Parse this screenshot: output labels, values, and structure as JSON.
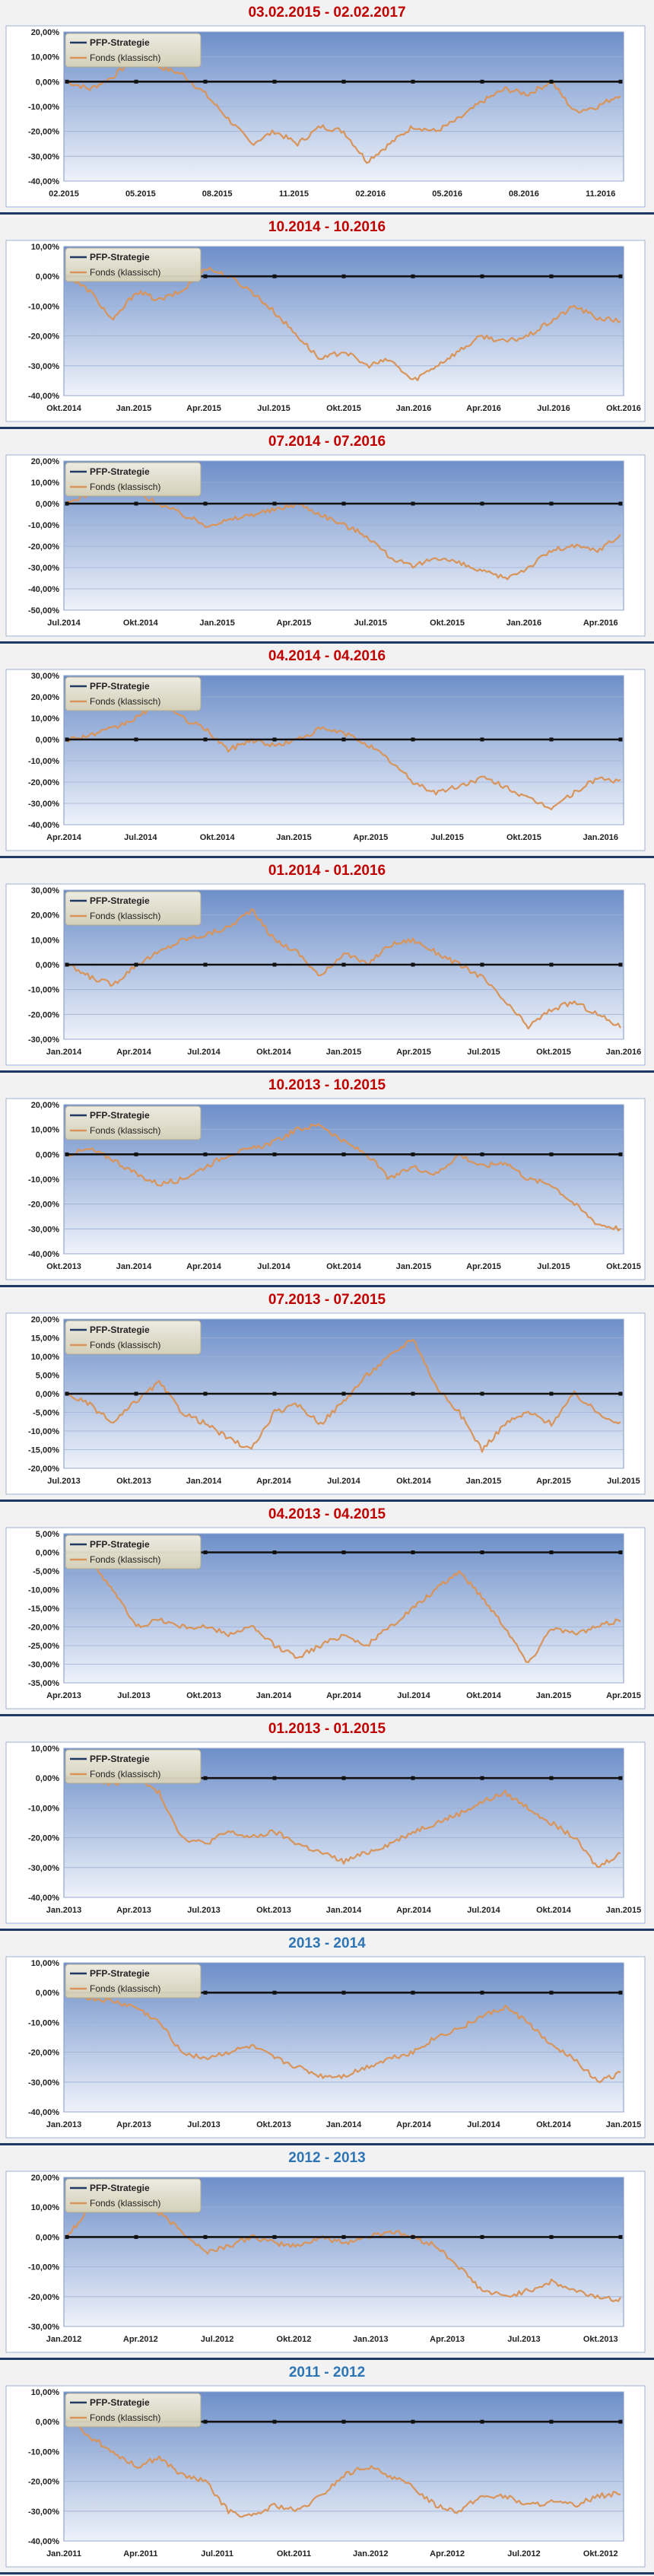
{
  "legend": {
    "strategy": "PFP-Strategie",
    "fund": "Fonds (klassisch)"
  },
  "colors": {
    "strategy": "#1f3864",
    "fund": "#d9945a",
    "red_title": "#c00000",
    "blue_title": "#2e75b6"
  },
  "chart_data": [
    {
      "type": "line",
      "title": "03.02.2015 - 02.02.2017",
      "title_color": "red",
      "yticks": [
        "20,00%",
        "10,00%",
        "0,00%",
        "-10,00%",
        "-20,00%",
        "-30,00%",
        "-40,00%"
      ],
      "ylim": [
        -40,
        20
      ],
      "xticks": [
        "02.2015",
        "05.2015",
        "08.2015",
        "11.2015",
        "02.2016",
        "05.2016",
        "08.2016",
        "11.2016"
      ],
      "series": [
        {
          "name": "PFP-Strategie",
          "values": [
            0,
            0,
            0,
            0,
            0,
            0,
            0,
            0,
            0,
            0,
            0,
            0,
            0,
            0,
            0,
            0,
            0,
            0,
            0,
            0,
            0,
            0,
            0,
            0,
            0
          ]
        },
        {
          "name": "Fonds (klassisch)",
          "values": [
            0,
            -3,
            2,
            10,
            6,
            3,
            -5,
            -15,
            -25,
            -20,
            -25,
            -18,
            -20,
            -32,
            -25,
            -18,
            -20,
            -15,
            -8,
            -3,
            -5,
            0,
            -12,
            -10,
            -5
          ]
        }
      ]
    },
    {
      "type": "line",
      "title": "10.2014 - 10.2016",
      "title_color": "red",
      "yticks": [
        "10,00%",
        "0,00%",
        "-10,00%",
        "-20,00%",
        "-30,00%",
        "-40,00%"
      ],
      "ylim": [
        -40,
        10
      ],
      "xticks": [
        "Okt.2014",
        "Jan.2015",
        "Apr.2015",
        "Jul.2015",
        "Okt.2015",
        "Jan.2016",
        "Apr.2016",
        "Jul.2016",
        "Okt.2016"
      ],
      "series": [
        {
          "name": "PFP-Strategie",
          "values": [
            0,
            0,
            0,
            0,
            0,
            0,
            0,
            0,
            0,
            0,
            0,
            0,
            0,
            0,
            0,
            0,
            0,
            0,
            0,
            0,
            0,
            0,
            0,
            0,
            0
          ]
        },
        {
          "name": "Fonds (klassisch)",
          "values": [
            0,
            -5,
            -15,
            -5,
            -8,
            -5,
            3,
            0,
            -5,
            -12,
            -20,
            -28,
            -25,
            -30,
            -28,
            -35,
            -30,
            -25,
            -20,
            -22,
            -20,
            -15,
            -10,
            -14,
            -15
          ]
        }
      ]
    },
    {
      "type": "line",
      "title": "07.2014 - 07.2016",
      "title_color": "red",
      "yticks": [
        "20,00%",
        "10,00%",
        "0,00%",
        "-10,00%",
        "-20,00%",
        "-30,00%",
        "-40,00%",
        "-50,00%"
      ],
      "ylim": [
        -50,
        20
      ],
      "xticks": [
        "Jul.2014",
        "Okt.2014",
        "Jan.2015",
        "Apr.2015",
        "Jul.2015",
        "Okt.2015",
        "Jan.2016",
        "Apr.2016"
      ],
      "series": [
        {
          "name": "PFP-Strategie",
          "values": [
            0,
            0,
            0,
            0,
            0,
            0,
            0,
            0,
            0,
            0,
            0,
            0,
            0,
            0,
            0,
            0,
            0,
            0,
            0,
            0,
            0,
            0,
            0,
            0,
            0
          ]
        },
        {
          "name": "Fonds (klassisch)",
          "values": [
            0,
            5,
            12,
            5,
            0,
            -5,
            -10,
            -8,
            -5,
            -3,
            0,
            -5,
            -10,
            -15,
            -25,
            -30,
            -25,
            -28,
            -32,
            -35,
            -30,
            -22,
            -20,
            -22,
            -15
          ]
        }
      ]
    },
    {
      "type": "line",
      "title": "04.2014 - 04.2016",
      "title_color": "red",
      "yticks": [
        "30,00%",
        "20,00%",
        "10,00%",
        "0,00%",
        "-10,00%",
        "-20,00%",
        "-30,00%",
        "-40,00%"
      ],
      "ylim": [
        -40,
        30
      ],
      "xticks": [
        "Apr.2014",
        "Jul.2014",
        "Okt.2014",
        "Jan.2015",
        "Apr.2015",
        "Jul.2015",
        "Okt.2015",
        "Jan.2016"
      ],
      "series": [
        {
          "name": "PFP-Strategie",
          "values": [
            0,
            0,
            0,
            0,
            0,
            0,
            0,
            0,
            0,
            0,
            0,
            0,
            0,
            0,
            0,
            0,
            0,
            0,
            0,
            0,
            0,
            0,
            0,
            0,
            0
          ]
        },
        {
          "name": "Fonds (klassisch)",
          "values": [
            0,
            2,
            5,
            10,
            18,
            10,
            5,
            -5,
            0,
            -3,
            0,
            5,
            3,
            -2,
            -10,
            -20,
            -25,
            -22,
            -18,
            -22,
            -28,
            -32,
            -25,
            -18,
            -20
          ]
        }
      ]
    },
    {
      "type": "line",
      "title": "01.2014 - 01.2016",
      "title_color": "red",
      "yticks": [
        "30,00%",
        "20,00%",
        "10,00%",
        "0,00%",
        "-10,00%",
        "-20,00%",
        "-30,00%"
      ],
      "ylim": [
        -30,
        30
      ],
      "xticks": [
        "Jan.2014",
        "Apr.2014",
        "Jul.2014",
        "Okt.2014",
        "Jan.2015",
        "Apr.2015",
        "Jul.2015",
        "Okt.2015",
        "Jan.2016"
      ],
      "series": [
        {
          "name": "PFP-Strategie",
          "values": [
            0,
            0,
            0,
            0,
            0,
            0,
            0,
            0,
            0,
            0,
            0,
            0,
            0,
            0,
            0,
            0,
            0,
            0,
            0,
            0,
            0,
            0,
            0,
            0,
            0
          ]
        },
        {
          "name": "Fonds (klassisch)",
          "values": [
            0,
            -5,
            -8,
            0,
            5,
            10,
            12,
            15,
            22,
            10,
            5,
            -5,
            5,
            0,
            8,
            10,
            5,
            0,
            -5,
            -15,
            -25,
            -18,
            -15,
            -20,
            -25
          ]
        }
      ]
    },
    {
      "type": "line",
      "title": "10.2013 - 10.2015",
      "title_color": "red",
      "yticks": [
        "20,00%",
        "10,00%",
        "0,00%",
        "-10,00%",
        "-20,00%",
        "-30,00%",
        "-40,00%"
      ],
      "ylim": [
        -40,
        20
      ],
      "xticks": [
        "Okt.2013",
        "Jan.2014",
        "Apr.2014",
        "Jul.2014",
        "Okt.2014",
        "Jan.2015",
        "Apr.2015",
        "Jul.2015",
        "Okt.2015"
      ],
      "series": [
        {
          "name": "PFP-Strategie",
          "values": [
            0,
            0,
            0,
            0,
            0,
            0,
            0,
            0,
            0,
            0,
            0,
            0,
            0,
            0,
            0,
            0,
            0,
            0,
            0,
            0,
            0,
            0,
            0,
            0,
            0
          ]
        },
        {
          "name": "Fonds (klassisch)",
          "values": [
            0,
            2,
            -2,
            -8,
            -12,
            -10,
            -5,
            0,
            2,
            5,
            10,
            12,
            5,
            0,
            -10,
            -5,
            -8,
            0,
            -5,
            -3,
            -10,
            -12,
            -20,
            -28,
            -30
          ]
        }
      ]
    },
    {
      "type": "line",
      "title": "07.2013 - 07.2015",
      "title_color": "red",
      "yticks": [
        "20,00%",
        "15,00%",
        "10,00%",
        "5,00%",
        "0,00%",
        "-5,00%",
        "-10,00%",
        "-15,00%",
        "-20,00%"
      ],
      "ylim": [
        -20,
        20
      ],
      "xticks": [
        "Jul.2013",
        "Okt.2013",
        "Jan.2014",
        "Apr.2014",
        "Jul.2014",
        "Okt.2014",
        "Jan.2015",
        "Apr.2015",
        "Jul.2015"
      ],
      "series": [
        {
          "name": "PFP-Strategie",
          "values": [
            0,
            0,
            0,
            0,
            0,
            0,
            0,
            0,
            0,
            0,
            0,
            0,
            0,
            0,
            0,
            0,
            0,
            0,
            0,
            0,
            0,
            0,
            0,
            0,
            0
          ]
        },
        {
          "name": "Fonds (klassisch)",
          "values": [
            0,
            -3,
            -8,
            -2,
            3,
            -5,
            -8,
            -12,
            -15,
            -5,
            -3,
            -8,
            -2,
            5,
            10,
            15,
            2,
            -5,
            -15,
            -8,
            -5,
            -8,
            0,
            -5,
            -8
          ]
        }
      ]
    },
    {
      "type": "line",
      "title": "04.2013 - 04.2015",
      "title_color": "red",
      "yticks": [
        "5,00%",
        "0,00%",
        "-5,00%",
        "-10,00%",
        "-15,00%",
        "-20,00%",
        "-25,00%",
        "-30,00%",
        "-35,00%"
      ],
      "ylim": [
        -35,
        5
      ],
      "xticks": [
        "Apr.2013",
        "Jul.2013",
        "Okt.2013",
        "Jan.2014",
        "Apr.2014",
        "Jul.2014",
        "Okt.2014",
        "Jan.2015",
        "Apr.2015"
      ],
      "series": [
        {
          "name": "PFP-Strategie",
          "values": [
            0,
            0,
            0,
            0,
            0,
            0,
            0,
            0,
            0,
            0,
            0,
            0,
            0,
            0,
            0,
            0,
            0,
            0,
            0,
            0,
            0,
            0,
            0,
            0,
            0
          ]
        },
        {
          "name": "Fonds (klassisch)",
          "values": [
            0,
            -2,
            -10,
            -20,
            -18,
            -20,
            -20,
            -22,
            -20,
            -25,
            -28,
            -25,
            -22,
            -25,
            -20,
            -15,
            -10,
            -5,
            -12,
            -20,
            -30,
            -20,
            -22,
            -20,
            -18
          ]
        }
      ]
    },
    {
      "type": "line",
      "title": "01.2013 - 01.2015",
      "title_color": "red",
      "yticks": [
        "10,00%",
        "0,00%",
        "-10,00%",
        "-20,00%",
        "-30,00%",
        "-40,00%"
      ],
      "ylim": [
        -40,
        10
      ],
      "xticks": [
        "Jan.2013",
        "Apr.2013",
        "Jul.2013",
        "Okt.2013",
        "Jan.2014",
        "Apr.2014",
        "Jul.2014",
        "Okt.2014",
        "Jan.2015"
      ],
      "series": [
        {
          "name": "PFP-Strategie",
          "values": [
            0,
            0,
            0,
            0,
            0,
            0,
            0,
            0,
            0,
            0,
            0,
            0,
            0,
            0,
            0,
            0,
            0,
            0,
            0,
            0,
            0,
            0,
            0,
            0,
            0
          ]
        },
        {
          "name": "Fonds (klassisch)",
          "values": [
            2,
            0,
            -2,
            0,
            -5,
            -20,
            -22,
            -18,
            -20,
            -18,
            -22,
            -25,
            -28,
            -25,
            -22,
            -18,
            -15,
            -12,
            -8,
            -5,
            -10,
            -15,
            -20,
            -30,
            -25
          ]
        }
      ]
    },
    {
      "type": "line",
      "title": "2013 - 2014",
      "title_color": "blue",
      "yticks": [
        "10,00%",
        "0,00%",
        "-10,00%",
        "-20,00%",
        "-30,00%",
        "-40,00%"
      ],
      "ylim": [
        -40,
        10
      ],
      "xticks": [
        "Jan.2013",
        "Apr.2013",
        "Jul.2013",
        "Okt.2013",
        "Jan.2014",
        "Apr.2014",
        "Jul.2014",
        "Okt.2014",
        "Jan.2015"
      ],
      "series": [
        {
          "name": "PFP-Strategie",
          "values": [
            0,
            0,
            0,
            0,
            0,
            0,
            0,
            0,
            0,
            0,
            0,
            0,
            0,
            0,
            0,
            0,
            0,
            0,
            0,
            0,
            0,
            0,
            0,
            0,
            0
          ]
        },
        {
          "name": "Fonds (klassisch)",
          "values": [
            0,
            -2,
            -3,
            -5,
            -10,
            -20,
            -22,
            -20,
            -18,
            -22,
            -25,
            -28,
            -28,
            -25,
            -22,
            -20,
            -15,
            -12,
            -8,
            -5,
            -10,
            -18,
            -22,
            -30,
            -27
          ]
        }
      ]
    },
    {
      "type": "line",
      "title": "2012 - 2013",
      "title_color": "blue",
      "yticks": [
        "20,00%",
        "10,00%",
        "0,00%",
        "-10,00%",
        "-20,00%",
        "-30,00%"
      ],
      "ylim": [
        -30,
        20
      ],
      "xticks": [
        "Jan.2012",
        "Apr.2012",
        "Jul.2012",
        "Okt.2012",
        "Jan.2013",
        "Apr.2013",
        "Jul.2013",
        "Okt.2013"
      ],
      "series": [
        {
          "name": "PFP-Strategie",
          "values": [
            0,
            0,
            0,
            0,
            0,
            0,
            0,
            0,
            0,
            0,
            0,
            0,
            0,
            0,
            0,
            0,
            0,
            0,
            0,
            0,
            0,
            0,
            0,
            0,
            0
          ]
        },
        {
          "name": "Fonds (klassisch)",
          "values": [
            0,
            10,
            14,
            12,
            8,
            2,
            -5,
            -3,
            0,
            -2,
            -3,
            0,
            -2,
            0,
            2,
            0,
            -3,
            -10,
            -18,
            -20,
            -18,
            -15,
            -18,
            -20,
            -21
          ]
        }
      ]
    },
    {
      "type": "line",
      "title": "2011 - 2012",
      "title_color": "blue",
      "yticks": [
        "10,00%",
        "0,00%",
        "-10,00%",
        "-20,00%",
        "-30,00%",
        "-40,00%"
      ],
      "ylim": [
        -40,
        10
      ],
      "xticks": [
        "Jan.2011",
        "Apr.2011",
        "Jul.2011",
        "Okt.2011",
        "Jan.2012",
        "Apr.2012",
        "Jul.2012",
        "Okt.2012"
      ],
      "series": [
        {
          "name": "PFP-Strategie",
          "values": [
            0,
            0,
            0,
            0,
            0,
            0,
            0,
            0,
            0,
            0,
            0,
            0,
            0,
            0,
            0,
            0,
            0,
            0,
            0,
            0,
            0,
            0,
            0,
            0,
            0
          ]
        },
        {
          "name": "Fonds (klassisch)",
          "values": [
            2,
            -5,
            -10,
            -15,
            -12,
            -18,
            -20,
            -30,
            -32,
            -28,
            -30,
            -25,
            -18,
            -15,
            -18,
            -22,
            -28,
            -30,
            -25,
            -25,
            -28,
            -27,
            -28,
            -25,
            -24
          ]
        }
      ]
    }
  ]
}
